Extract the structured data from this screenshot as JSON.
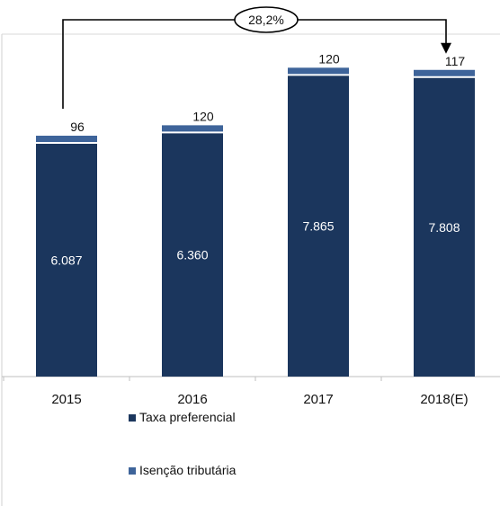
{
  "chart_data": {
    "type": "bar",
    "stacked": true,
    "categories": [
      "2015",
      "2016",
      "2017",
      "2018(E)"
    ],
    "series": [
      {
        "name": "Taxa preferencial",
        "color": "#1b365d",
        "values": [
          6087,
          6360,
          7865,
          7808
        ],
        "labels": [
          "6.087",
          "6.360",
          "7.865",
          "7.808"
        ]
      },
      {
        "name": "Isenção tributária",
        "color": "#3e649a",
        "values": [
          96,
          120,
          120,
          117
        ],
        "labels": [
          "96",
          "120",
          "120",
          "117"
        ]
      }
    ],
    "annotation": {
      "text": "28,2%",
      "from": "2015",
      "to": "2018(E)"
    },
    "legend_position": "bottom",
    "grid": false
  }
}
